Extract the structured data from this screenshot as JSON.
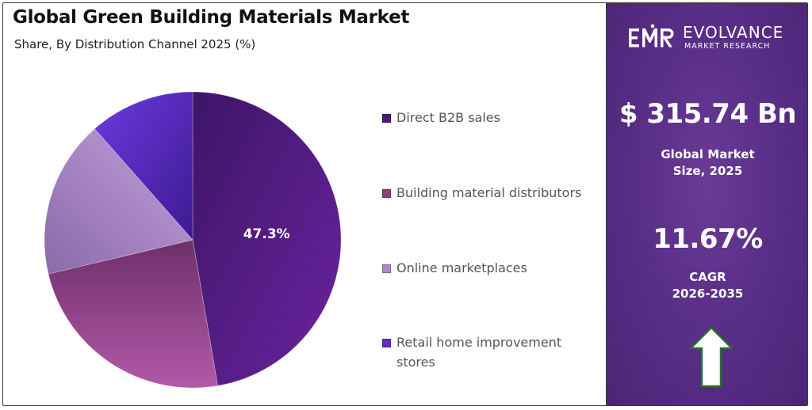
{
  "header": {
    "title": "Global Green Building Materials Market",
    "subtitle": "Share, By Distribution Channel 2025 (%)"
  },
  "chart_data": {
    "type": "pie",
    "title": "Global Green Building Materials Market",
    "subtitle": "Share, By Distribution Channel 2025 (%)",
    "categories": [
      "Direct B2B sales",
      "Building material distributors",
      "Online marketplaces",
      "Retail home improvement stores"
    ],
    "values": [
      47.3,
      24.0,
      17.2,
      11.5
    ],
    "colors": [
      "#5b1f8a",
      "#8e3f80",
      "#b088c9",
      "#5b2fc8"
    ],
    "labels": [
      "47.3%",
      "",
      "",
      ""
    ],
    "legend_position": "right",
    "start_angle_deg": 0,
    "direction": "clockwise"
  },
  "legend": {
    "items": [
      {
        "label": "Direct B2B sales",
        "color": "#4a1a6e"
      },
      {
        "label": "Building material distributors",
        "color": "#8e3f80"
      },
      {
        "label": "Online marketplaces",
        "color": "#b088c9"
      },
      {
        "label": "Retail home improvement stores",
        "color": "#5b2fc8"
      }
    ]
  },
  "sidebar": {
    "logo": {
      "name": "EVOLVANCE",
      "sub": "MARKET RESEARCH",
      "mark": "EMR"
    },
    "market_size": {
      "value": "$ 315.74 Bn",
      "label_line1": "Global Market",
      "label_line2": "Size, 2025"
    },
    "cagr": {
      "value": "11.67%",
      "label_line1": "CAGR",
      "label_line2": "2026-2035"
    },
    "arrow_icon": "up-arrow-icon",
    "background_color": "#5a2f88"
  }
}
